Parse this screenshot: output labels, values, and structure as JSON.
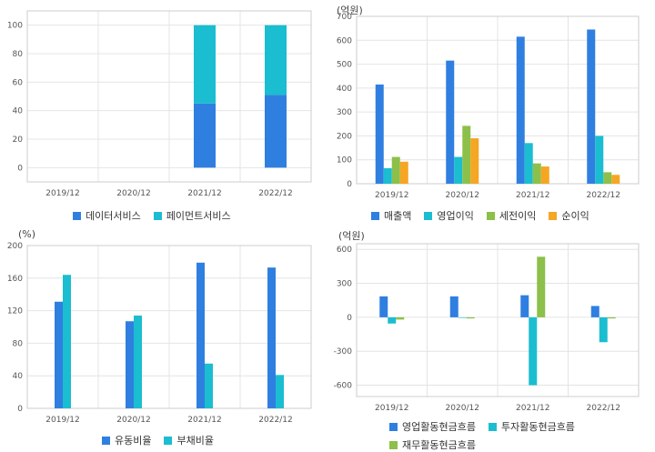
{
  "colors": {
    "blue": "#2f7fe0",
    "teal": "#1bbdd0",
    "green": "#8cc04a",
    "orange": "#f5a623",
    "grid": "#e4e4e4",
    "frame": "#cccccc"
  },
  "chart_data": [
    {
      "id": "segment",
      "type": "bar",
      "stacked": true,
      "unit_label": "",
      "categories": [
        "2019/12",
        "2020/12",
        "2021/12",
        "2022/12"
      ],
      "ylim": [
        -10,
        110
      ],
      "yticks": [
        0,
        20,
        40,
        60,
        80,
        100
      ],
      "series": [
        {
          "name": "데이터서비스",
          "color": "#2f7fe0",
          "values": [
            null,
            null,
            45,
            51
          ]
        },
        {
          "name": "페이먼트서비스",
          "color": "#1bbdd0",
          "values": [
            null,
            null,
            55,
            49
          ]
        }
      ],
      "grid": true,
      "legend": "bottom"
    },
    {
      "id": "income",
      "type": "bar",
      "unit_label": "(억원)",
      "categories": [
        "2019/12",
        "2020/12",
        "2021/12",
        "2022/12"
      ],
      "ylim": [
        0,
        700
      ],
      "yticks": [
        0,
        100,
        200,
        300,
        400,
        500,
        600,
        700
      ],
      "series": [
        {
          "name": "매출액",
          "color": "#2f7fe0",
          "values": [
            415,
            515,
            615,
            645
          ]
        },
        {
          "name": "영업이익",
          "color": "#1bbdd0",
          "values": [
            65,
            112,
            170,
            200
          ]
        },
        {
          "name": "세전이익",
          "color": "#8cc04a",
          "values": [
            112,
            242,
            85,
            48
          ]
        },
        {
          "name": "순이익",
          "color": "#f5a623",
          "values": [
            92,
            190,
            72,
            37
          ]
        }
      ],
      "grid": true,
      "legend": "bottom"
    },
    {
      "id": "ratio",
      "type": "bar",
      "unit_label": "(%)",
      "categories": [
        "2019/12",
        "2020/12",
        "2021/12",
        "2022/12"
      ],
      "ylim": [
        0,
        200
      ],
      "yticks": [
        0,
        40,
        80,
        120,
        160,
        200
      ],
      "series": [
        {
          "name": "유동비율",
          "color": "#2f7fe0",
          "values": [
            131,
            107,
            179,
            173
          ]
        },
        {
          "name": "부채비율",
          "color": "#1bbdd0",
          "values": [
            164,
            114,
            55,
            41
          ]
        }
      ],
      "grid": true,
      "legend": "bottom"
    },
    {
      "id": "cashflow",
      "type": "bar",
      "unit_label": "(억원)",
      "categories": [
        "2019/12",
        "2020/12",
        "2021/12",
        "2022/12"
      ],
      "ylim": [
        -700,
        650
      ],
      "yticks": [
        -600,
        -300,
        0,
        300,
        600
      ],
      "series": [
        {
          "name": "영업활동현금흐름",
          "color": "#2f7fe0",
          "values": [
            185,
            185,
            195,
            100
          ]
        },
        {
          "name": "투자활동현금흐름",
          "color": "#1bbdd0",
          "values": [
            -55,
            -5,
            -600,
            -220
          ]
        },
        {
          "name": "재무활동현금흐름",
          "color": "#8cc04a",
          "values": [
            -20,
            -10,
            535,
            -10
          ]
        }
      ],
      "grid": true,
      "legend": "bottom"
    }
  ]
}
